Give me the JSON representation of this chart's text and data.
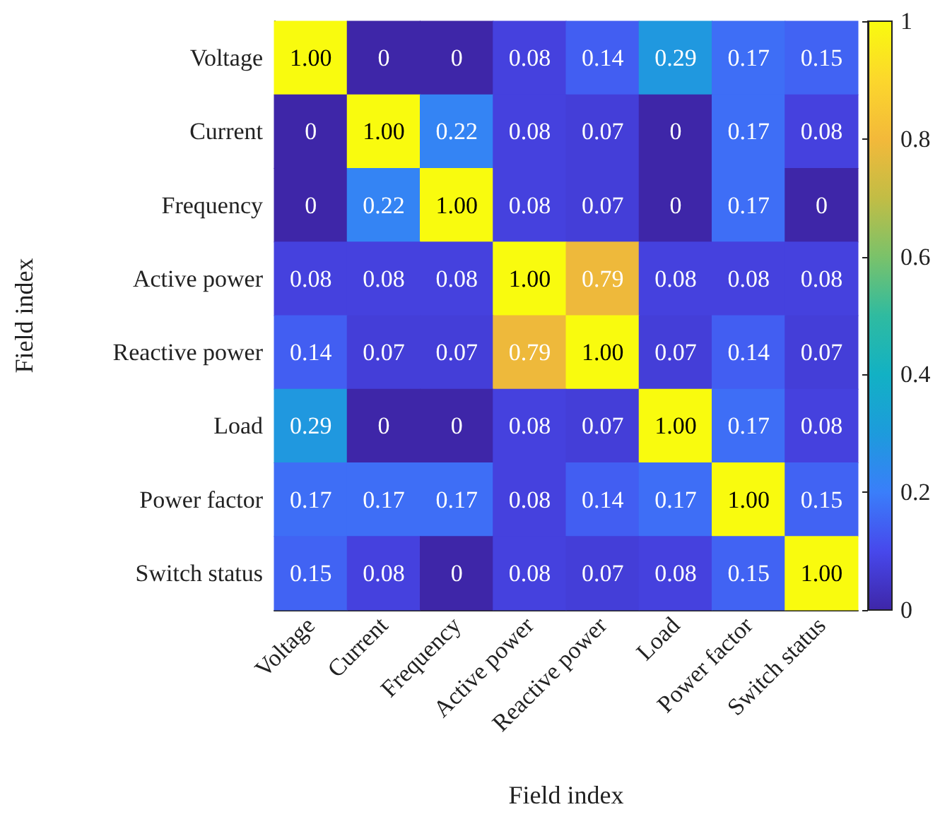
{
  "chart_data": {
    "type": "heatmap",
    "xlabel": "Field index",
    "ylabel": "Field index",
    "categories": [
      "Voltage",
      "Current",
      "Frequency",
      "Active power",
      "Reactive power",
      "Load",
      "Power factor",
      "Switch status"
    ],
    "y_categories": [
      "Voltage",
      "Current",
      "Frequency",
      "Active power",
      "Reactive power",
      "Load",
      "Power factor",
      "Switch status"
    ],
    "cells": [
      [
        1,
        0,
        0,
        0.08,
        0.14,
        0.29,
        0.17,
        0.15
      ],
      [
        0,
        1,
        0.22,
        0.08,
        0.07,
        0,
        0.17,
        0.08
      ],
      [
        0,
        0.22,
        1,
        0.08,
        0.07,
        0,
        0.17,
        0
      ],
      [
        0.08,
        0.08,
        0.08,
        1,
        0.79,
        0.08,
        0.08,
        0.08
      ],
      [
        0.14,
        0.07,
        0.07,
        0.79,
        1,
        0.07,
        0.14,
        0.07
      ],
      [
        0.29,
        0,
        0,
        0.08,
        0.07,
        1,
        0.17,
        0.08
      ],
      [
        0.17,
        0.17,
        0.17,
        0.08,
        0.14,
        0.17,
        1,
        0.15
      ],
      [
        0.15,
        0.08,
        0,
        0.08,
        0.07,
        0.08,
        0.15,
        1
      ]
    ],
    "cell_labels": [
      [
        "1.00",
        "0",
        "0",
        "0.08",
        "0.14",
        "0.29",
        "0.17",
        "0.15"
      ],
      [
        "0",
        "1.00",
        "0.22",
        "0.08",
        "0.07",
        "0",
        "0.17",
        "0.08"
      ],
      [
        "0",
        "0.22",
        "1.00",
        "0.08",
        "0.07",
        "0",
        "0.17",
        "0"
      ],
      [
        "0.08",
        "0.08",
        "0.08",
        "1.00",
        "0.79",
        "0.08",
        "0.08",
        "0.08"
      ],
      [
        "0.14",
        "0.07",
        "0.07",
        "0.79",
        "1.00",
        "0.07",
        "0.14",
        "0.07"
      ],
      [
        "0.29",
        "0",
        "0",
        "0.08",
        "0.07",
        "1.00",
        "0.17",
        "0.08"
      ],
      [
        "0.17",
        "0.17",
        "0.17",
        "0.08",
        "0.14",
        "0.17",
        "1.00",
        "0.15"
      ],
      [
        "0.15",
        "0.08",
        "0",
        "0.08",
        "0.07",
        "0.08",
        "0.15",
        "1.00"
      ]
    ],
    "clim": [
      0,
      1
    ],
    "cticks": [
      0,
      0.2,
      0.4,
      0.6,
      0.8,
      1
    ]
  }
}
